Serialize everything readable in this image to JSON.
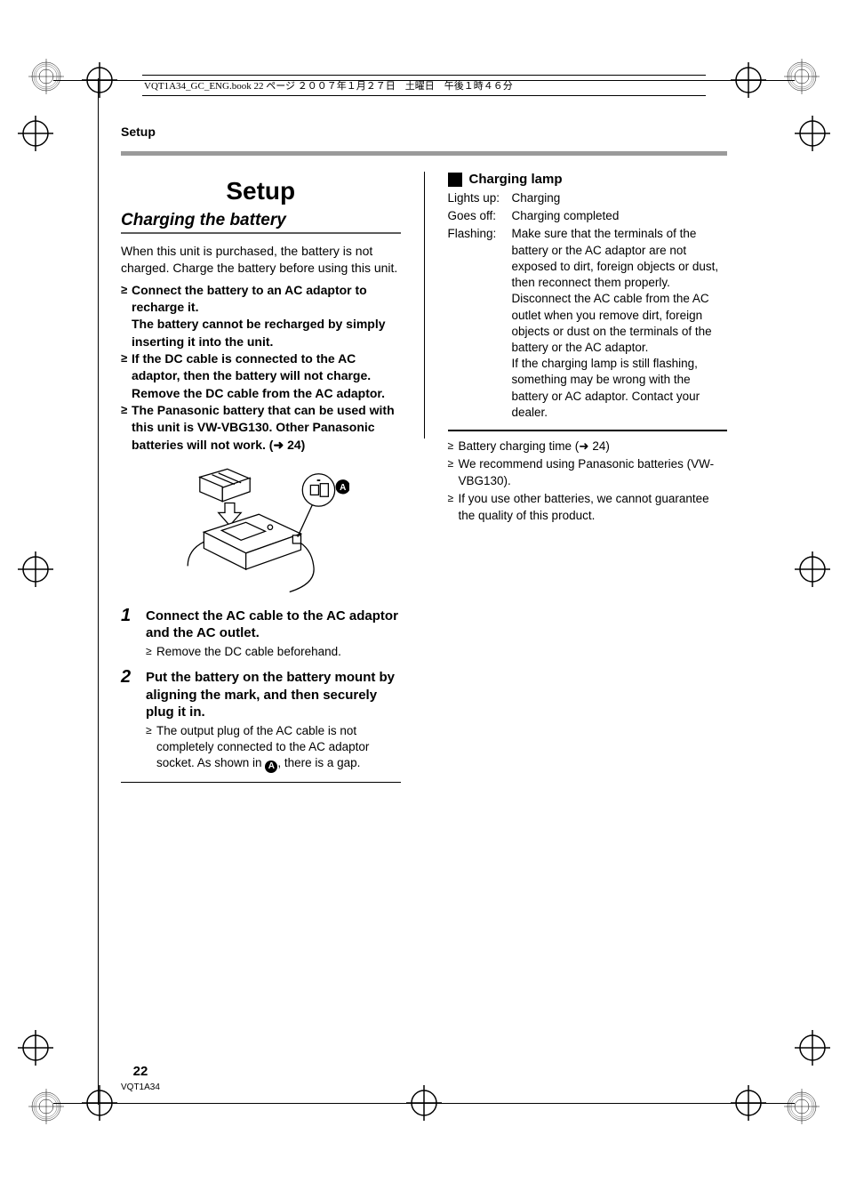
{
  "page_info_header": "VQT1A34_GC_ENG.book  22 ページ  ２００７年１月２７日　土曜日　午後１時４６分",
  "section": "Setup",
  "left": {
    "title": "Setup",
    "subtitle": "Charging the battery",
    "intro": "When this unit is purchased, the battery is not charged. Charge the battery before using this unit.",
    "bullets": [
      "Connect the battery to an AC adaptor to recharge it.\nThe battery cannot be recharged by simply inserting it into the unit.",
      "If the DC cable is connected to the AC adaptor, then the battery will not charge. Remove the DC cable from the AC adaptor.",
      "The Panasonic battery that can be used with this unit is VW-VBG130. Other Panasonic batteries will not work. (➜ 24)"
    ],
    "figure_label": "A",
    "steps": [
      {
        "num": "1",
        "title": "Connect the AC cable to the AC adaptor and the AC outlet.",
        "subs": [
          "Remove the DC cable beforehand."
        ]
      },
      {
        "num": "2",
        "title": "Put the battery on the battery mount by aligning the mark, and then securely plug it in.",
        "subs": [
          "The output plug of the AC cable is not completely connected to the AC adaptor socket. As shown in ⒶPLACEHOLDER, there is a gap."
        ]
      }
    ]
  },
  "right": {
    "heading": "Charging lamp",
    "rows": [
      {
        "k": "Lights up:",
        "v": "Charging"
      },
      {
        "k": "Goes off:",
        "v": "Charging completed"
      },
      {
        "k": "Flashing:",
        "v": "Make sure that the terminals of the battery or the AC adaptor are not exposed to dirt, foreign objects or dust, then reconnect them properly. Disconnect the AC cable from the AC outlet when you remove dirt, foreign objects or dust on the terminals of the battery or the AC adaptor.\nIf the charging lamp is still flashing, something may be wrong with the battery or AC adaptor. Contact your dealer."
      }
    ],
    "notes": [
      "Battery charging time (➜ 24)",
      "We recommend using Panasonic batteries (VW-VBG130).",
      "If you use other batteries, we cannot guarantee the quality of this product."
    ]
  },
  "footer": {
    "page": "22",
    "doc": "VQT1A34"
  },
  "colors": {
    "rule_gray": "#9a9a9a",
    "text": "#000000"
  }
}
